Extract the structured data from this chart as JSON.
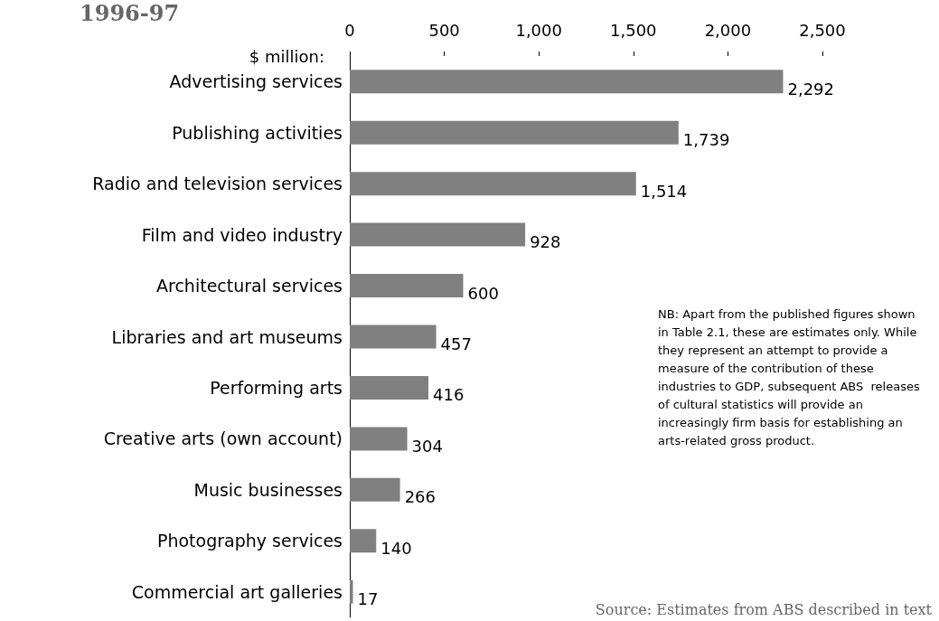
{
  "chart_data": {
    "type": "bar",
    "orientation": "horizontal",
    "title": "1996-97",
    "xlabel": "$ million:",
    "categories": [
      "Advertising services",
      "Publishing activities",
      "Radio and television services",
      "Film and video industry",
      "Architectural services",
      "Libraries and art museums",
      "Performing arts",
      "Creative arts (own account)",
      "Music businesses",
      "Photography services",
      "Commercial art galleries"
    ],
    "values": [
      2292,
      1739,
      1514,
      928,
      600,
      457,
      416,
      304,
      266,
      140,
      17
    ],
    "value_labels": [
      "2,292",
      "1,739",
      "1,514",
      "928",
      "600",
      "457",
      "416",
      "304",
      "266",
      "140",
      "17"
    ],
    "color": "#808080",
    "xlim": [
      0,
      2500
    ],
    "xticks": [
      0,
      500,
      {
        "value": 1000,
        "label": "1,000"
      },
      {
        "value": 1500,
        "label": "1,500"
      },
      {
        "value": 2000,
        "label": "2,000"
      },
      {
        "value": 2500,
        "label": "2,500"
      }
    ],
    "grid": false,
    "annotations": [
      "NB: Apart from the published figures shown in Table 2.1, these are estimates only. While they represent an attempt to provide a measure of the contribution of these industries to GDP, subsequent ABS  releases of cultural statistics will provide an increasingly firm basis for establishing an arts-related gross product.",
      "Source: Estimates from ABS described in text"
    ]
  }
}
